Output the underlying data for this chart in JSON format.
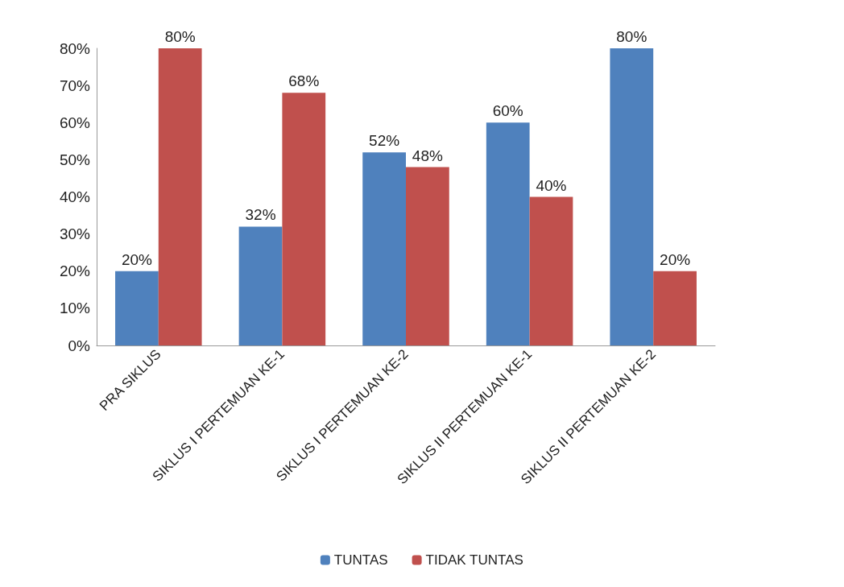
{
  "chart_data": {
    "type": "bar",
    "categories": [
      "PRA SIKLUS",
      "SIKLUS I PERTEMUAN KE-1",
      "SIKLUS I PERTEMUAN KE-2",
      "SIKLUS II PERTEMUAN KE-1",
      "SIKLUS II PERTEMUAN KE-2"
    ],
    "series": [
      {
        "name": "TUNTAS",
        "color": "#4f81bd",
        "values": [
          20,
          32,
          52,
          60,
          80
        ],
        "value_labels": [
          "20%",
          "32%",
          "52%",
          "60%",
          "80%"
        ]
      },
      {
        "name": "TIDAK TUNTAS",
        "color": "#c0504d",
        "values": [
          80,
          68,
          48,
          40,
          20
        ],
        "value_labels": [
          "80%",
          "68%",
          "48%",
          "40%",
          "20%"
        ]
      }
    ],
    "ylim": [
      0,
      80
    ],
    "yticks": [
      {
        "value": 0,
        "label": "0%"
      },
      {
        "value": 10,
        "label": "10%"
      },
      {
        "value": 20,
        "label": "20%"
      },
      {
        "value": 30,
        "label": "30%"
      },
      {
        "value": 40,
        "label": "40%"
      },
      {
        "value": 50,
        "label": "50%"
      },
      {
        "value": 60,
        "label": "60%"
      },
      {
        "value": 70,
        "label": "70%"
      },
      {
        "value": 80,
        "label": "80%"
      }
    ],
    "grid": false,
    "legend": "bottom"
  }
}
